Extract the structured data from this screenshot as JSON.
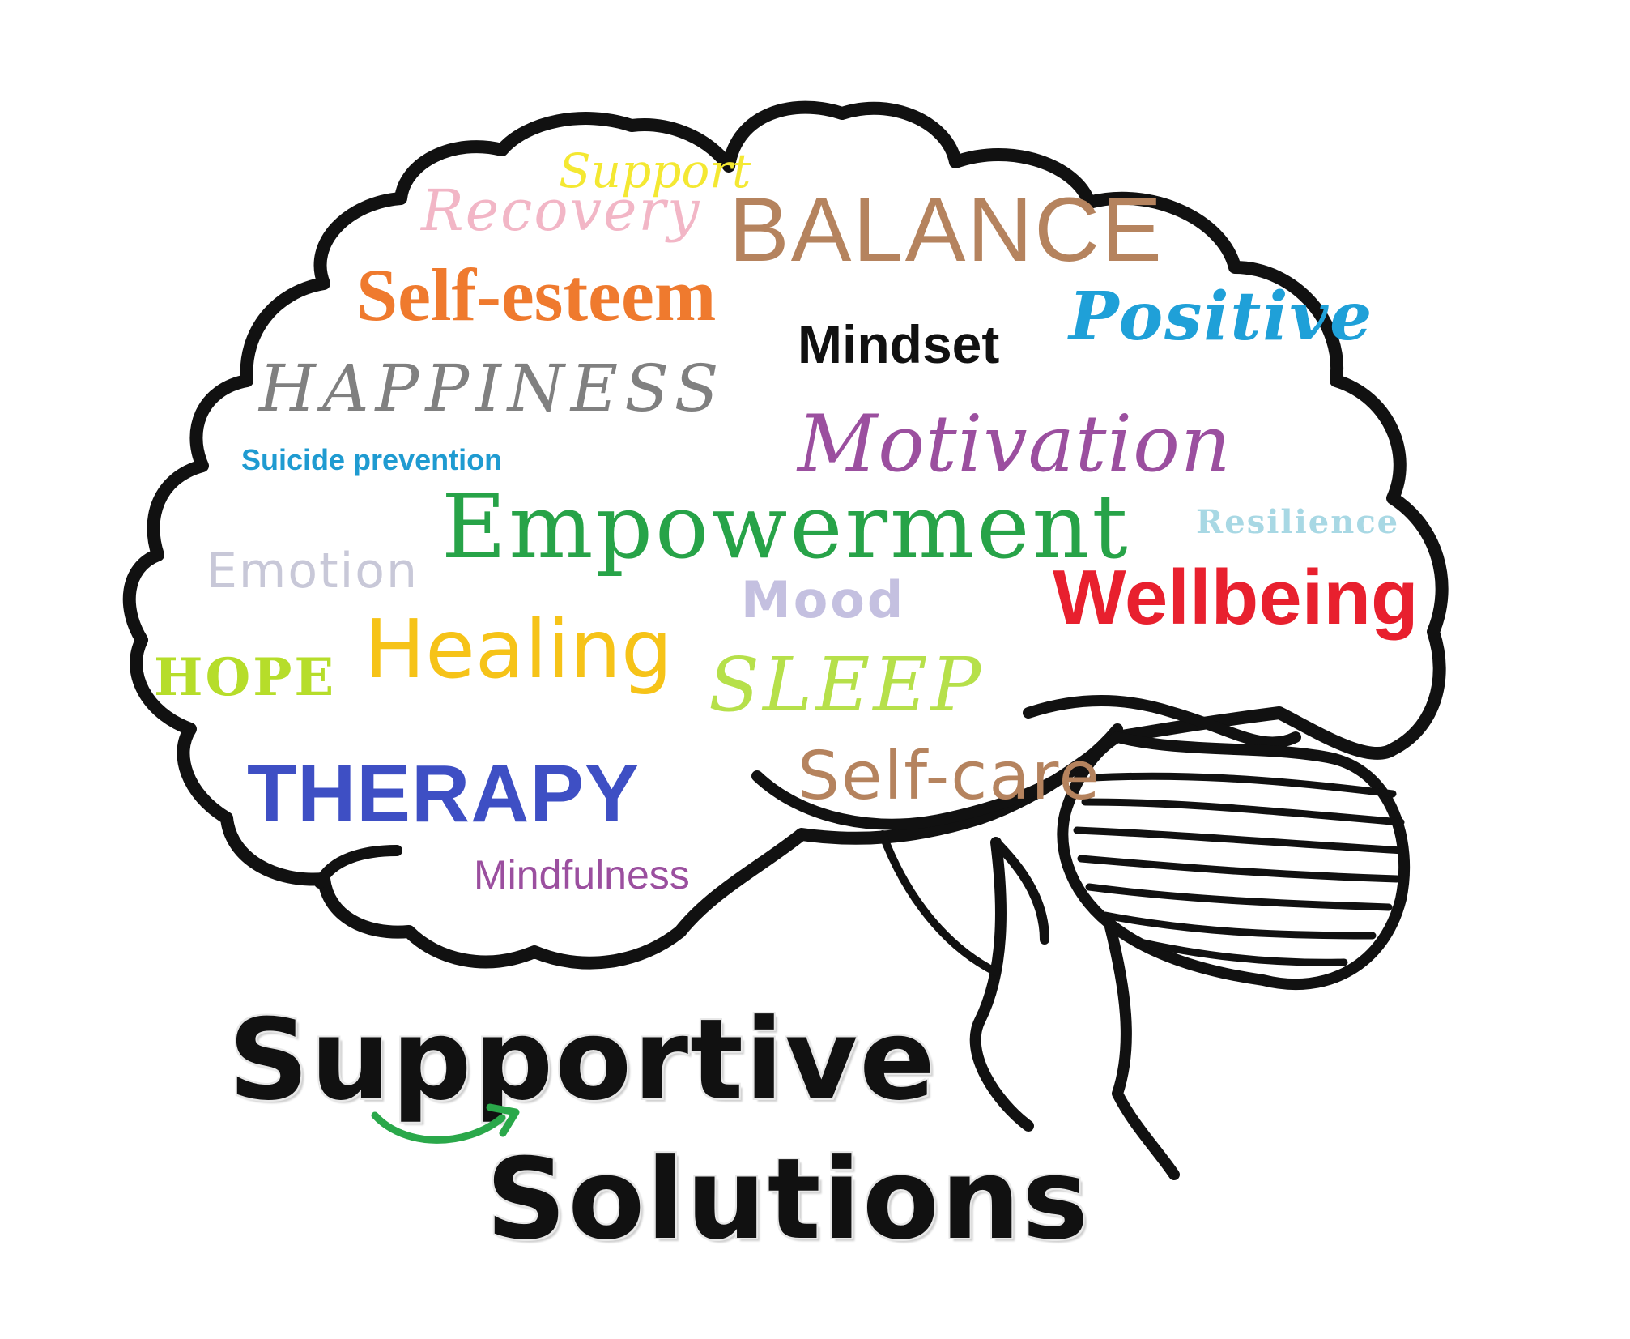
{
  "logo": {
    "line1": "Supportive",
    "line2": "Solutions",
    "arrow_color": "#2aa84a",
    "icon": "brain-outline-icon"
  },
  "words": {
    "support": {
      "text": "Support",
      "color": "#f4e832"
    },
    "recovery": {
      "text": "Recovery",
      "color": "#f2b6c6"
    },
    "balance": {
      "text": "BALANCE",
      "color": "#b5835e"
    },
    "self_esteem": {
      "text": "Self-esteem",
      "color": "#ef7a2e"
    },
    "positive": {
      "text": "Positive",
      "color": "#1fa0d8"
    },
    "mindset": {
      "text": "Mindset",
      "color": "#111111"
    },
    "happiness": {
      "text": "HAPPINESS",
      "color": "#808080"
    },
    "motivation": {
      "text": "Motivation",
      "color": "#9b4f9f"
    },
    "suicide_prevention": {
      "text": "Suicide prevention",
      "color": "#1f9bd1"
    },
    "empowerment": {
      "text": "Empowerment",
      "color": "#27a348"
    },
    "resilience": {
      "text": "Resilience",
      "color": "#a8d8e4"
    },
    "emotion": {
      "text": "Emotion",
      "color": "#c8c8d8"
    },
    "wellbeing": {
      "text": "Wellbeing",
      "color": "#e8202e"
    },
    "mood": {
      "text": "Mood",
      "color": "#c4c0e0"
    },
    "healing": {
      "text": "Healing",
      "color": "#f6c318"
    },
    "hope": {
      "text": "HOPE",
      "color": "#b6dd2a"
    },
    "sleep": {
      "text": "SLEEP",
      "color": "#b6e04a"
    },
    "therapy": {
      "text": "THERAPY",
      "color": "#3e4fc4"
    },
    "self_care": {
      "text": "Self-care",
      "color": "#b5835e"
    },
    "mindfulness": {
      "text": "Mindfulness",
      "color": "#9b4f9f"
    }
  }
}
